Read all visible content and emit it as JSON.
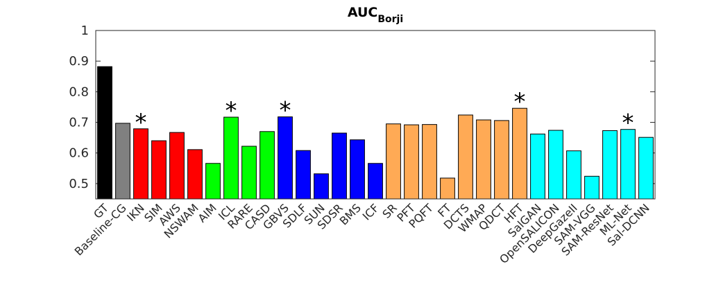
{
  "chart_data": {
    "type": "bar",
    "title": {
      "text": "AUC",
      "subscript": "Borji"
    },
    "categories": [
      "GT",
      "Baseline-CG",
      "IKN",
      "SIM",
      "AWS",
      "NSWAM",
      "AIM",
      "ICL",
      "RARE",
      "CASD",
      "GBVS",
      "SDLF",
      "SUN",
      "SDSR",
      "BMS",
      "ICF",
      "SR",
      "PFT",
      "PQFT",
      "FT",
      "DCTS",
      "WMAP",
      "QDCT",
      "HFT",
      "SalGAN",
      "OpenSALICON",
      "DeepGazeII",
      "SAM-VGG",
      "SAM-ResNet",
      "ML-Net",
      "Sal-DCNN"
    ],
    "values": [
      0.882,
      0.697,
      0.679,
      0.64,
      0.667,
      0.611,
      0.566,
      0.717,
      0.622,
      0.67,
      0.718,
      0.608,
      0.532,
      0.665,
      0.643,
      0.566,
      0.695,
      0.692,
      0.693,
      0.518,
      0.724,
      0.708,
      0.706,
      0.746,
      0.662,
      0.674,
      0.607,
      0.524,
      0.673,
      0.677,
      0.651
    ],
    "colors": [
      "#000000",
      "#808080",
      "#ff0000",
      "#ff0000",
      "#ff0000",
      "#ff0000",
      "#00ff00",
      "#00ff00",
      "#00ff00",
      "#00ff00",
      "#0000ff",
      "#0000ff",
      "#0000ff",
      "#0000ff",
      "#0000ff",
      "#0000ff",
      "#ffaa55",
      "#ffaa55",
      "#ffaa55",
      "#ffaa55",
      "#ffaa55",
      "#ffaa55",
      "#ffaa55",
      "#ffaa55",
      "#00ffff",
      "#00ffff",
      "#00ffff",
      "#00ffff",
      "#00ffff",
      "#00ffff",
      "#00ffff"
    ],
    "annotations": [
      {
        "text": "*",
        "category": "IKN"
      },
      {
        "text": "*",
        "category": "ICL"
      },
      {
        "text": "*",
        "category": "GBVS"
      },
      {
        "text": "*",
        "category": "HFT"
      },
      {
        "text": "*",
        "category": "ML-Net"
      }
    ],
    "ylim": [
      0.45,
      1
    ],
    "yticks": [
      0.5,
      0.6,
      0.7,
      0.8,
      0.9,
      1
    ],
    "grid": false
  }
}
